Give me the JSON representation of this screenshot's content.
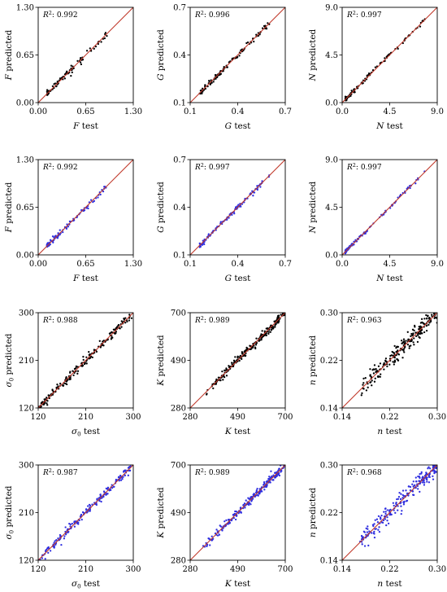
{
  "colors": {
    "identity_line": "#c0392b",
    "points_black": "#000000",
    "points_blue": "#2f2fe0",
    "frame": "#000000"
  },
  "chart_data": [
    {
      "type": "scatter",
      "var": "F",
      "sub": "",
      "r2": "0.992",
      "lim": [
        0.0,
        1.3
      ],
      "ticks": [
        "0.00",
        "0.65",
        "1.30"
      ],
      "tickvals": [
        0.0,
        0.65,
        1.3
      ],
      "color": "points_black",
      "n": 90,
      "dist": [
        0.12,
        0.95,
        2.0
      ],
      "noise": 0.022,
      "seed": 11
    },
    {
      "type": "scatter",
      "var": "G",
      "sub": "",
      "r2": "0.996",
      "lim": [
        0.1,
        0.7
      ],
      "ticks": [
        "0.1",
        "0.4",
        "0.7"
      ],
      "tickvals": [
        0.1,
        0.4,
        0.7
      ],
      "color": "points_black",
      "n": 110,
      "dist": [
        0.16,
        0.6,
        1.3
      ],
      "noise": 0.008,
      "seed": 12
    },
    {
      "type": "scatter",
      "var": "N",
      "sub": "",
      "r2": "0.997",
      "lim": [
        0.0,
        9.0
      ],
      "ticks": [
        "0.0",
        "4.5",
        "9.0"
      ],
      "tickvals": [
        0.0,
        4.5,
        9.0
      ],
      "color": "points_black",
      "n": 110,
      "dist": [
        0.3,
        7.9,
        2.2
      ],
      "noise": 0.1,
      "seed": 13
    },
    {
      "type": "scatter",
      "var": "F",
      "sub": "",
      "r2": "0.992",
      "lim": [
        0.0,
        1.3
      ],
      "ticks": [
        "0.00",
        "0.65",
        "1.30"
      ],
      "tickvals": [
        0.0,
        0.65,
        1.3
      ],
      "color": "points_blue",
      "n": 90,
      "dist": [
        0.12,
        0.95,
        2.0
      ],
      "noise": 0.02,
      "seed": 21
    },
    {
      "type": "scatter",
      "var": "G",
      "sub": "",
      "r2": "0.997",
      "lim": [
        0.1,
        0.7
      ],
      "ticks": [
        "0.1",
        "0.4",
        "0.7"
      ],
      "tickvals": [
        0.1,
        0.4,
        0.7
      ],
      "color": "points_blue",
      "n": 110,
      "dist": [
        0.16,
        0.6,
        1.3
      ],
      "noise": 0.007,
      "seed": 22
    },
    {
      "type": "scatter",
      "var": "N",
      "sub": "",
      "r2": "0.997",
      "lim": [
        0.0,
        9.0
      ],
      "ticks": [
        "0.0",
        "4.5",
        "9.0"
      ],
      "tickvals": [
        0.0,
        4.5,
        9.0
      ],
      "color": "points_blue",
      "n": 110,
      "dist": [
        0.3,
        7.9,
        2.2
      ],
      "noise": 0.09,
      "seed": 23
    },
    {
      "type": "scatter",
      "var": "σ",
      "sub": "0",
      "r2": "0.988",
      "lim": [
        120,
        300
      ],
      "ticks": [
        "120",
        "210",
        "300"
      ],
      "tickvals": [
        120,
        210,
        300
      ],
      "color": "points_black",
      "n": 190,
      "dist": [
        122,
        300,
        1.0
      ],
      "noise": 4.0,
      "seed": 31
    },
    {
      "type": "scatter",
      "var": "K",
      "sub": "",
      "r2": "0.989",
      "lim": [
        280,
        700
      ],
      "ticks": [
        "280",
        "490",
        "700"
      ],
      "tickvals": [
        280,
        490,
        700
      ],
      "color": "points_black",
      "n": 230,
      "dist": [
        340,
        698,
        0.65
      ],
      "noise": 9.0,
      "seed": 32
    },
    {
      "type": "scatter",
      "var": "n",
      "sub": "",
      "r2": "0.963",
      "lim": [
        0.14,
        0.3
      ],
      "ticks": [
        "0.14",
        "0.22",
        "0.30"
      ],
      "tickvals": [
        0.14,
        0.22,
        0.3
      ],
      "color": "points_black",
      "n": 230,
      "dist": [
        0.17,
        0.3,
        0.8
      ],
      "noise": 0.0075,
      "seed": 33
    },
    {
      "type": "scatter",
      "var": "σ",
      "sub": "0",
      "r2": "0.987",
      "lim": [
        120,
        300
      ],
      "ticks": [
        "120",
        "210",
        "300"
      ],
      "tickvals": [
        120,
        210,
        300
      ],
      "color": "points_blue",
      "n": 190,
      "dist": [
        122,
        300,
        1.0
      ],
      "noise": 4.0,
      "seed": 41
    },
    {
      "type": "scatter",
      "var": "K",
      "sub": "",
      "r2": "0.989",
      "lim": [
        280,
        700
      ],
      "ticks": [
        "280",
        "490",
        "700"
      ],
      "tickvals": [
        280,
        490,
        700
      ],
      "color": "points_blue",
      "n": 230,
      "dist": [
        330,
        698,
        0.7
      ],
      "noise": 9.0,
      "seed": 42
    },
    {
      "type": "scatter",
      "var": "n",
      "sub": "",
      "r2": "0.968",
      "lim": [
        0.14,
        0.3
      ],
      "ticks": [
        "0.14",
        "0.22",
        "0.30"
      ],
      "tickvals": [
        0.14,
        0.22,
        0.3
      ],
      "color": "points_blue",
      "n": 230,
      "dist": [
        0.17,
        0.3,
        0.8
      ],
      "noise": 0.0075,
      "seed": 43
    }
  ],
  "labels": {
    "r2_prefix": "R",
    "r2_sup": "2",
    "r2_sep": ": ",
    "predicted_suffix": " predicted",
    "test_suffix": " test"
  }
}
